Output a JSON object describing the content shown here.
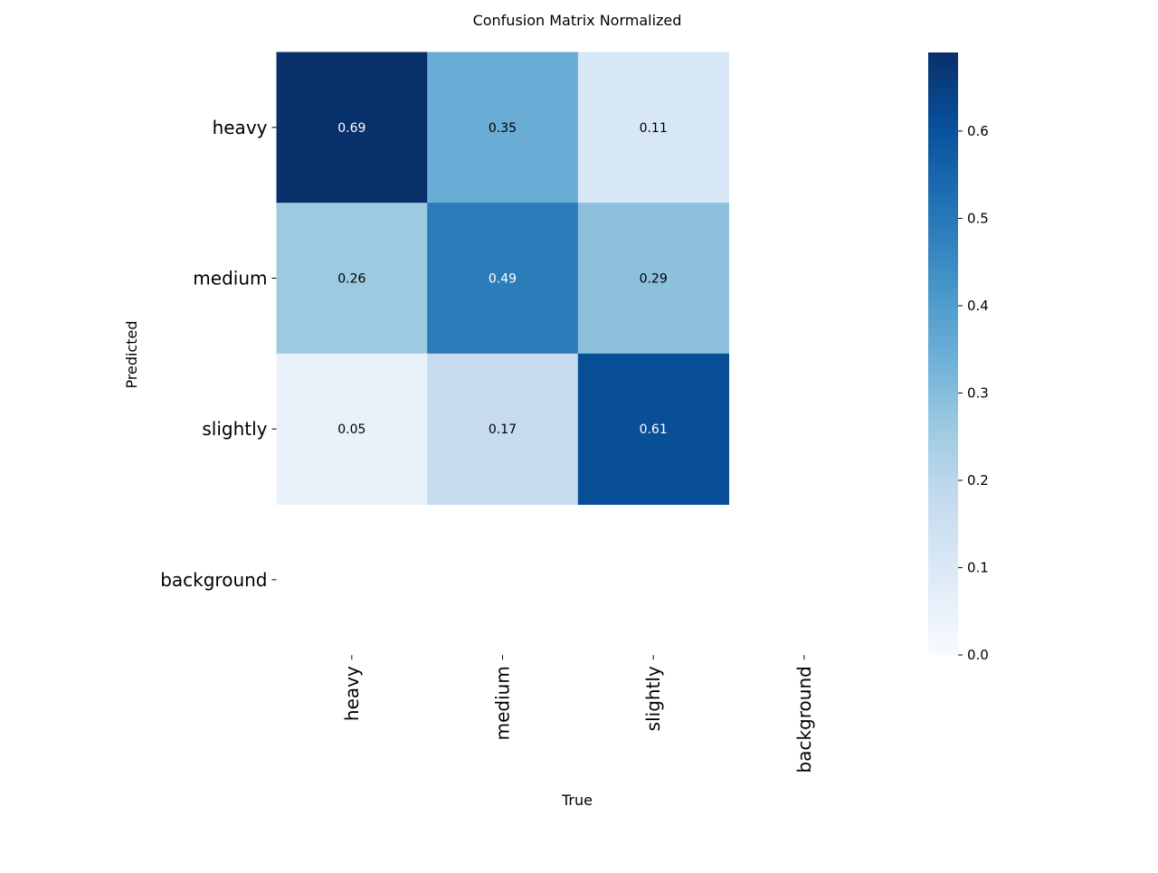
{
  "chart_data": {
    "type": "heatmap",
    "title": "Confusion Matrix Normalized",
    "xlabel": "True",
    "ylabel": "Predicted",
    "x_categories": [
      "heavy",
      "medium",
      "slightly",
      "background"
    ],
    "y_categories": [
      "heavy",
      "medium",
      "slightly",
      "background"
    ],
    "matrix": [
      [
        0.69,
        0.35,
        0.11,
        null
      ],
      [
        0.26,
        0.49,
        0.29,
        null
      ],
      [
        0.05,
        0.17,
        0.61,
        null
      ],
      [
        null,
        null,
        null,
        null
      ]
    ],
    "cell_labels": [
      [
        "0.69",
        "0.35",
        "0.11",
        ""
      ],
      [
        "0.26",
        "0.49",
        "0.29",
        ""
      ],
      [
        "0.05",
        "0.17",
        "0.61",
        ""
      ],
      [
        "",
        "",
        "",
        ""
      ]
    ],
    "colorbar": {
      "colormap": "Blues",
      "range": [
        0,
        0.69
      ],
      "ticks": [
        0.0,
        0.1,
        0.2,
        0.3,
        0.4,
        0.5,
        0.6
      ],
      "tick_labels": [
        "0.0",
        "0.1",
        "0.2",
        "0.3",
        "0.4",
        "0.5",
        "0.6"
      ]
    },
    "grid": false,
    "legend": "colorbar-right"
  }
}
